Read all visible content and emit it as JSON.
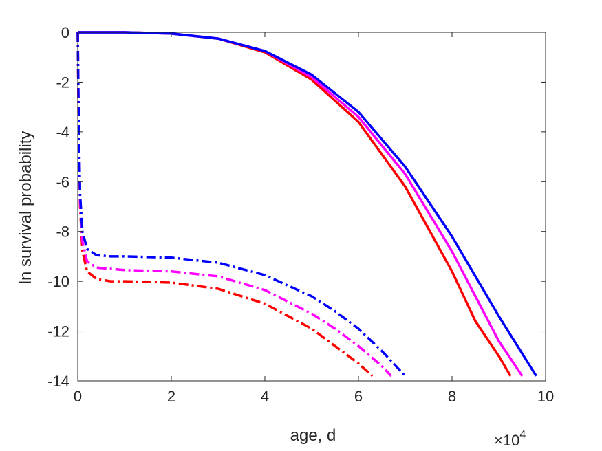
{
  "chart_data": {
    "type": "line",
    "xlabel": "age, d",
    "ylabel": "ln survival probability",
    "x_exponent_label": "×10",
    "x_exponent_power": "4",
    "xlim": [
      0,
      10
    ],
    "ylim": [
      -14,
      0
    ],
    "xticks": [
      0,
      2,
      4,
      6,
      8,
      10
    ],
    "yticks": [
      0,
      -2,
      -4,
      -6,
      -8,
      -10,
      -12,
      -14
    ],
    "grid": false,
    "series": [
      {
        "color": "#ff0000",
        "style": "solid",
        "x": [
          0.0,
          0.5,
          1.0,
          2.0,
          3.0,
          4.0,
          5.0,
          6.0,
          7.0,
          8.0,
          8.5,
          9.0,
          9.25
        ],
        "y": [
          0,
          0,
          0,
          -0.05,
          -0.25,
          -0.8,
          -1.9,
          -3.6,
          -6.2,
          -9.6,
          -11.6,
          -13.0,
          -13.8
        ]
      },
      {
        "color": "#ff00ff",
        "style": "solid",
        "x": [
          0.0,
          0.5,
          1.0,
          2.0,
          3.0,
          4.0,
          5.0,
          6.0,
          7.0,
          8.0,
          8.5,
          9.0,
          9.5
        ],
        "y": [
          0,
          0,
          0,
          -0.05,
          -0.25,
          -0.75,
          -1.8,
          -3.4,
          -5.7,
          -8.8,
          -10.6,
          -12.4,
          -13.8
        ]
      },
      {
        "color": "#0000ff",
        "style": "solid",
        "x": [
          0.0,
          0.5,
          1.0,
          2.0,
          3.0,
          4.0,
          5.0,
          6.0,
          7.0,
          8.0,
          8.5,
          9.0,
          9.5,
          9.8
        ],
        "y": [
          0,
          0,
          0,
          -0.05,
          -0.25,
          -0.75,
          -1.7,
          -3.2,
          -5.4,
          -8.2,
          -9.8,
          -11.4,
          -12.9,
          -13.8
        ]
      },
      {
        "color": "#ff0000",
        "style": "dashdot",
        "x": [
          0.0,
          0.02,
          0.05,
          0.1,
          0.2,
          0.4,
          0.7,
          1.0,
          2.0,
          3.0,
          4.0,
          5.0,
          5.5,
          6.0,
          6.3
        ],
        "y": [
          0,
          -4.0,
          -7.0,
          -8.8,
          -9.6,
          -9.9,
          -10.0,
          -10.0,
          -10.05,
          -10.3,
          -10.9,
          -11.9,
          -12.6,
          -13.3,
          -13.8
        ]
      },
      {
        "color": "#ff00ff",
        "style": "dashdot",
        "x": [
          0.0,
          0.02,
          0.05,
          0.1,
          0.2,
          0.4,
          0.7,
          1.0,
          2.0,
          3.0,
          4.0,
          5.0,
          5.5,
          6.0,
          6.5,
          6.7
        ],
        "y": [
          0,
          -3.8,
          -6.8,
          -8.4,
          -9.2,
          -9.45,
          -9.5,
          -9.55,
          -9.6,
          -9.8,
          -10.35,
          -11.3,
          -11.9,
          -12.6,
          -13.4,
          -13.8
        ]
      },
      {
        "color": "#0000ff",
        "style": "dashdot",
        "x": [
          0.0,
          0.02,
          0.05,
          0.1,
          0.2,
          0.4,
          0.7,
          1.0,
          2.0,
          3.0,
          4.0,
          5.0,
          5.5,
          6.0,
          6.5,
          7.0
        ],
        "y": [
          0,
          -3.5,
          -6.5,
          -8.0,
          -8.7,
          -8.95,
          -9.0,
          -9.0,
          -9.05,
          -9.25,
          -9.75,
          -10.6,
          -11.2,
          -11.9,
          -12.8,
          -13.8
        ]
      }
    ]
  }
}
